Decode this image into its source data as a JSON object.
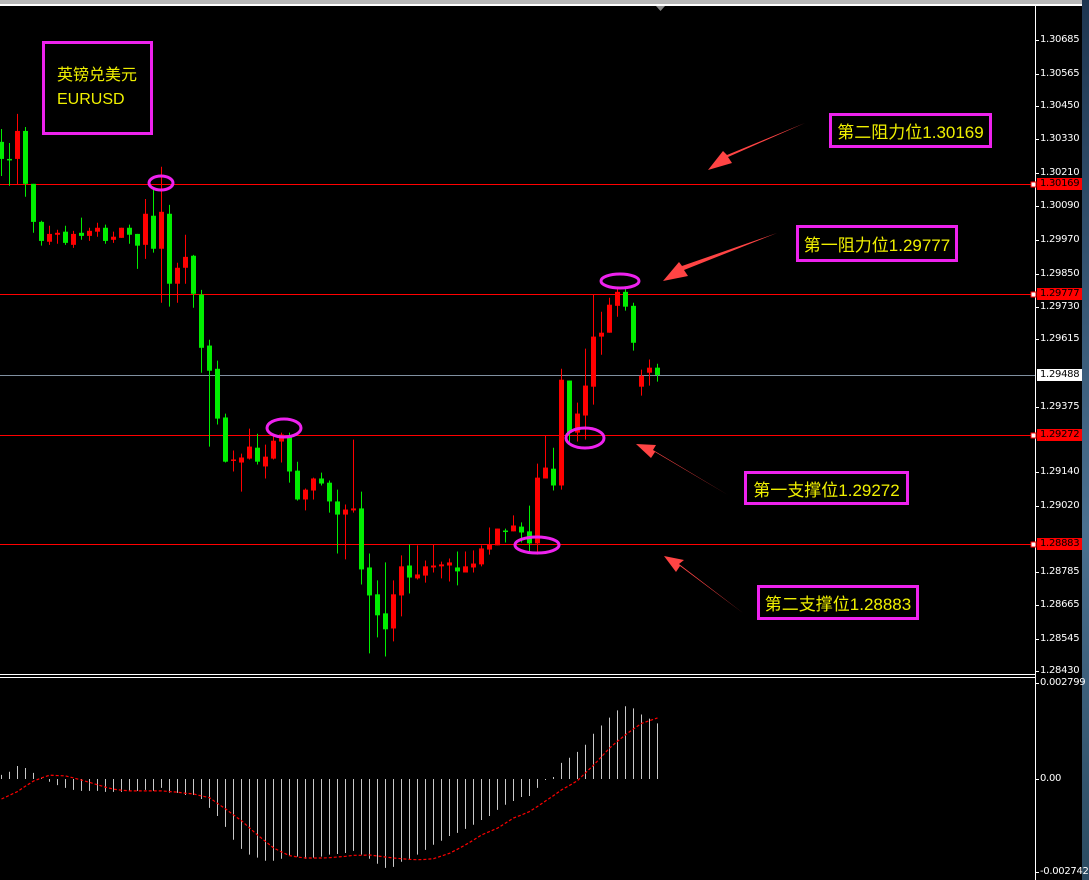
{
  "chart_data": {
    "type": "candlestick",
    "title": "英镑兑美元",
    "symbol": "EURUSD",
    "colors": {
      "up": "#ff0000",
      "down": "#00ee00",
      "background": "#000000",
      "annotation": "#ee22ee",
      "label_text": "#f0f000",
      "arrow": "#ff4444",
      "level_line": "#ff0000",
      "bid_line": "#8090a0",
      "histogram": "#c8c8c8",
      "signal": "#ff0000"
    },
    "price_axis": {
      "ylim": [
        1.2843,
        1.30685
      ],
      "ticks": [
        "1.30685",
        "1.30565",
        "1.30450",
        "1.30330",
        "1.30210",
        "1.30090",
        "1.29970",
        "1.29850",
        "1.29730",
        "1.29615",
        "1.29375",
        "1.29140",
        "1.29020",
        "1.28785",
        "1.28665",
        "1.28545",
        "1.28430"
      ]
    },
    "current_price": "1.29488",
    "candles_ohlc": [
      [
        1.30321,
        1.30367,
        1.30199,
        1.3026
      ],
      [
        1.3026,
        1.30317,
        1.30164,
        1.30257
      ],
      [
        1.3026,
        1.30421,
        1.30167,
        1.3036
      ],
      [
        1.3036,
        1.30374,
        1.30125,
        1.30171
      ],
      [
        1.30171,
        1.30171,
        1.29996,
        1.30035
      ],
      [
        1.30035,
        1.30039,
        1.2995,
        1.29967
      ],
      [
        1.29964,
        1.30021,
        1.29953,
        1.29992
      ],
      [
        1.29989,
        1.30007,
        1.29957,
        1.29996
      ],
      [
        1.3,
        1.30021,
        1.29953,
        1.2996
      ],
      [
        1.29953,
        1.30003,
        1.29942,
        1.29992
      ],
      [
        1.29996,
        1.3005,
        1.29971,
        1.29985
      ],
      [
        1.29985,
        1.30014,
        1.29967,
        1.30003
      ],
      [
        1.3,
        1.30032,
        1.29982,
        1.30014
      ],
      [
        1.30014,
        1.30025,
        1.29957,
        1.29967
      ],
      [
        1.29971,
        1.3,
        1.2996,
        1.29982
      ],
      [
        1.29978,
        1.30014,
        1.29978,
        1.30014
      ],
      [
        1.30014,
        1.30025,
        1.29957,
        1.29989
      ],
      [
        1.29992,
        1.29992,
        1.29867,
        1.2995
      ],
      [
        1.29953,
        1.30117,
        1.29903,
        1.30064
      ],
      [
        1.30057,
        1.30157,
        1.29925,
        1.29939
      ],
      [
        1.29939,
        1.30232,
        1.29746,
        1.30071
      ],
      [
        1.30064,
        1.30096,
        1.29732,
        1.29814
      ],
      [
        1.29814,
        1.29889,
        1.29746,
        1.29871
      ],
      [
        1.29871,
        1.29989,
        1.29814,
        1.2991
      ],
      [
        1.29914,
        1.29917,
        1.29728,
        1.29778
      ],
      [
        1.29775,
        1.29792,
        1.29496,
        1.29585
      ],
      [
        1.29593,
        1.29614,
        1.29232,
        1.29503
      ],
      [
        1.2951,
        1.29539,
        1.29311,
        1.29332
      ],
      [
        1.29336,
        1.2935,
        1.29175,
        1.29178
      ],
      [
        1.29182,
        1.29218,
        1.29143,
        1.29186
      ],
      [
        1.29175,
        1.29207,
        1.29071,
        1.29193
      ],
      [
        1.29189,
        1.29296,
        1.29186,
        1.29232
      ],
      [
        1.29228,
        1.29278,
        1.29168,
        1.29178
      ],
      [
        1.29161,
        1.29239,
        1.29118,
        1.29196
      ],
      [
        1.29189,
        1.29268,
        1.29186,
        1.29253
      ],
      [
        1.2925,
        1.29282,
        1.29175,
        1.29275
      ],
      [
        1.29271,
        1.29282,
        1.29103,
        1.29143
      ],
      [
        1.29146,
        1.29178,
        1.29039,
        1.29043
      ],
      [
        1.29043,
        1.29082,
        1.29004,
        1.29078
      ],
      [
        1.29075,
        1.29121,
        1.29043,
        1.29118
      ],
      [
        1.29118,
        1.29139,
        1.29093,
        1.291
      ],
      [
        1.29103,
        1.29111,
        1.28996,
        1.29036
      ],
      [
        1.29036,
        1.29078,
        1.2885,
        1.28989
      ],
      [
        1.28989,
        1.29025,
        1.28829,
        1.29007
      ],
      [
        1.29004,
        1.29257,
        1.28996,
        1.29011
      ],
      [
        1.29011,
        1.29071,
        1.28739,
        1.28793
      ],
      [
        1.288,
        1.2885,
        1.28493,
        1.287
      ],
      [
        1.28704,
        1.28754,
        1.2855,
        1.28629
      ],
      [
        1.28636,
        1.28818,
        1.28482,
        1.28579
      ],
      [
        1.28582,
        1.28754,
        1.28536,
        1.28704
      ],
      [
        1.287,
        1.28843,
        1.28625,
        1.28804
      ],
      [
        1.28807,
        1.28882,
        1.28707,
        1.28764
      ],
      [
        1.28761,
        1.28879,
        1.28757,
        1.28775
      ],
      [
        1.28771,
        1.28825,
        1.28746,
        1.28804
      ],
      [
        1.288,
        1.28882,
        1.28782,
        1.28807
      ],
      [
        1.28804,
        1.28821,
        1.28761,
        1.28811
      ],
      [
        1.28807,
        1.28832,
        1.2875,
        1.28818
      ],
      [
        1.288,
        1.28857,
        1.28736,
        1.28786
      ],
      [
        1.28782,
        1.28857,
        1.28782,
        1.28804
      ],
      [
        1.288,
        1.28861,
        1.28782,
        1.28814
      ],
      [
        1.28811,
        1.28879,
        1.28804,
        1.28868
      ],
      [
        1.28864,
        1.28943,
        1.28846,
        1.28882
      ],
      [
        1.28879,
        1.28939,
        1.28879,
        1.28939
      ],
      [
        1.28932,
        1.28939,
        1.28889,
        1.28929
      ],
      [
        1.28929,
        1.28986,
        1.28929,
        1.2895
      ],
      [
        1.28946,
        1.28961,
        1.28889,
        1.28925
      ],
      [
        1.28929,
        1.29021,
        1.28857,
        1.28886
      ],
      [
        1.28886,
        1.29171,
        1.28846,
        1.29121
      ],
      [
        1.29118,
        1.29271,
        1.29118,
        1.29157
      ],
      [
        1.29153,
        1.29228,
        1.29075,
        1.29093
      ],
      [
        1.29093,
        1.2951,
        1.29078,
        1.29471
      ],
      [
        1.29468,
        1.29468,
        1.29246,
        1.29282
      ],
      [
        1.29282,
        1.29389,
        1.2925,
        1.2935
      ],
      [
        1.29343,
        1.29582,
        1.29257,
        1.2945
      ],
      [
        1.29446,
        1.29775,
        1.29382,
        1.29625
      ],
      [
        1.29625,
        1.29714,
        1.2956,
        1.29639
      ],
      [
        1.29639,
        1.29764,
        1.29639,
        1.29739
      ],
      [
        1.29735,
        1.298,
        1.29696,
        1.29785
      ],
      [
        1.29785,
        1.29796,
        1.29718,
        1.29732
      ],
      [
        1.29735,
        1.29746,
        1.29575,
        1.29603
      ],
      [
        1.29446,
        1.29507,
        1.29414,
        1.29485
      ],
      [
        1.29496,
        1.29543,
        1.2945,
        1.29514
      ],
      [
        1.29514,
        1.29528,
        1.29464,
        1.29488
      ]
    ],
    "levels": [
      {
        "price": 1.30169,
        "label": "1.30169",
        "type": "resistance"
      },
      {
        "price": 1.29777,
        "label": "1.29777",
        "type": "resistance"
      },
      {
        "price": 1.29272,
        "label": "1.29272",
        "type": "support"
      },
      {
        "price": 1.28883,
        "label": "1.28883",
        "type": "support"
      }
    ],
    "macd": {
      "axis_labels": [
        "0.002799",
        "0.00",
        "-0.002742"
      ],
      "ylim": [
        -0.002742,
        0.002799
      ],
      "histogram": [
        0.00012,
        0.00021,
        0.00038,
        0.00032,
        0.00018,
        2e-05,
        -8e-05,
        -0.00018,
        -0.00026,
        -0.00032,
        -0.00035,
        -0.00035,
        -0.00035,
        -0.00038,
        -0.00038,
        -0.00038,
        -0.00035,
        -0.00035,
        -0.00032,
        -0.00035,
        -0.00026,
        -0.0004,
        -0.00041,
        -0.00047,
        -0.00047,
        -0.00059,
        -0.00085,
        -0.00109,
        -0.00141,
        -0.00179,
        -0.00206,
        -0.00223,
        -0.00232,
        -0.00241,
        -0.00241,
        -0.00235,
        -0.00226,
        -0.00229,
        -0.00235,
        -0.00232,
        -0.00229,
        -0.00223,
        -0.00221,
        -0.00218,
        -0.00212,
        -0.00223,
        -0.00235,
        -0.0025,
        -0.00262,
        -0.00259,
        -0.00244,
        -0.00235,
        -0.00223,
        -0.00209,
        -0.00194,
        -0.00182,
        -0.00168,
        -0.00159,
        -0.00147,
        -0.00135,
        -0.00121,
        -0.00109,
        -0.00091,
        -0.00076,
        -0.00065,
        -0.00053,
        -0.0005,
        -0.00026,
        -3e-05,
        6e-05,
        0.00047,
        0.00062,
        0.00079,
        0.001,
        0.00132,
        0.00156,
        0.00179,
        0.002,
        0.00212,
        0.00206,
        0.00188,
        0.00176,
        0.00162
      ],
      "signal": [
        -0.00059,
        -0.00048,
        -0.00037,
        -0.00021,
        -6e-05,
        3e-05,
        0.00011,
        0.0001,
        9e-05,
        3e-05,
        -3e-05,
        -0.0001,
        -0.00017,
        -0.00024,
        -0.0003,
        -0.00033,
        -0.00035,
        -0.00035,
        -0.00035,
        -0.00035,
        -0.00035,
        -0.00037,
        -0.00039,
        -0.00042,
        -0.00044,
        -0.0005,
        -0.00055,
        -0.00072,
        -0.00088,
        -0.00106,
        -0.00123,
        -0.00144,
        -0.00165,
        -0.00184,
        -0.00203,
        -0.00215,
        -0.00226,
        -0.0023,
        -0.00233,
        -0.00233,
        -0.00233,
        -0.00232,
        -0.0023,
        -0.00228,
        -0.00225,
        -0.00225,
        -0.00224,
        -0.00227,
        -0.0023,
        -0.00233,
        -0.00235,
        -0.00237,
        -0.00238,
        -0.00237,
        -0.00235,
        -0.00227,
        -0.00219,
        -0.00207,
        -0.00194,
        -0.0018,
        -0.00165,
        -0.00155,
        -0.00145,
        -0.0013,
        -0.00115,
        -0.00106,
        -0.00096,
        -0.00081,
        -0.00065,
        -0.00049,
        -0.00032,
        -0.00019,
        -5e-05,
        0.00018,
        0.0004,
        0.00065,
        0.0009,
        0.0011,
        0.00129,
        0.00146,
        0.00162,
        0.0017,
        0.00178
      ]
    }
  },
  "annotations": {
    "title_line1": "英镑兑美元",
    "title_line2": "EURUSD",
    "resistance_2": "第二阻力位1.30169",
    "resistance_1": "第一阻力位1.29777",
    "support_1": "第一支撑位1.29272",
    "support_2": "第二支撑位1.28883",
    "circled_candles": [
      20,
      32,
      77,
      72,
      67
    ]
  }
}
